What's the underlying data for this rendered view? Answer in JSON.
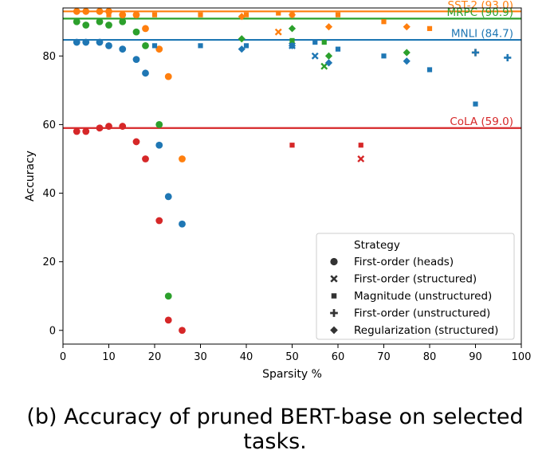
{
  "caption": "(b) Accuracy of pruned BERT-base on selected tasks.",
  "colors": {
    "SST-2": "#ff7f0e",
    "MRPC": "#2ca02c",
    "MNLI": "#1f77b4",
    "CoLA": "#d62728"
  },
  "chart_data": {
    "type": "scatter",
    "xlabel": "Sparsity %",
    "ylabel": "Accuracy",
    "xlim": [
      0,
      100
    ],
    "ylim": [
      -4,
      94
    ],
    "xticks": [
      0,
      10,
      20,
      30,
      40,
      50,
      60,
      70,
      80,
      90,
      100
    ],
    "yticks": [
      0,
      20,
      40,
      60,
      80
    ],
    "grid": false,
    "reference_lines": [
      {
        "task": "SST-2",
        "value": 93.0,
        "label": "SST-2 (93.0)"
      },
      {
        "task": "MRPC",
        "value": 90.9,
        "label": "MRPC (90.9)"
      },
      {
        "task": "MNLI",
        "value": 84.7,
        "label": "MNLI (84.7)"
      },
      {
        "task": "CoLA",
        "value": 59.0,
        "label": "CoLA (59.0)"
      }
    ],
    "legend": {
      "placement": "lower-right",
      "title": "Strategy",
      "entries": [
        {
          "marker": "circle",
          "label": "First-order (heads)"
        },
        {
          "marker": "x",
          "label": "First-order (structured)"
        },
        {
          "marker": "square",
          "label": "Magnitude (unstructured)"
        },
        {
          "marker": "plus",
          "label": "First-order (unstructured)"
        },
        {
          "marker": "diamond",
          "label": "Regularization (structured)"
        }
      ]
    },
    "series": [
      {
        "task": "SST-2",
        "strategy": "First-order (heads)",
        "marker": "circle",
        "x": [
          3,
          5,
          8,
          10,
          13,
          16,
          18,
          21,
          23,
          26
        ],
        "y": [
          93,
          93,
          93,
          93,
          92,
          92,
          88,
          82,
          74,
          50
        ]
      },
      {
        "task": "MRPC",
        "strategy": "First-order (heads)",
        "marker": "circle",
        "x": [
          3,
          5,
          8,
          10,
          13,
          16,
          18,
          21,
          23
        ],
        "y": [
          90,
          89,
          90,
          89,
          90,
          87,
          83,
          60,
          10
        ]
      },
      {
        "task": "MNLI",
        "strategy": "First-order (heads)",
        "marker": "circle",
        "x": [
          3,
          5,
          8,
          10,
          13,
          16,
          18,
          21,
          23,
          26
        ],
        "y": [
          84,
          84,
          84,
          83,
          82,
          79,
          75,
          54,
          39,
          31
        ]
      },
      {
        "task": "CoLA",
        "strategy": "First-order (heads)",
        "marker": "circle",
        "x": [
          3,
          5,
          8,
          10,
          13,
          16,
          18,
          21,
          23,
          26
        ],
        "y": [
          58,
          58,
          59,
          59.5,
          59.5,
          55,
          50,
          32,
          3,
          0
        ]
      },
      {
        "task": "SST-2",
        "strategy": "First-order (structured)",
        "marker": "x",
        "x": [
          47
        ],
        "y": [
          87
        ]
      },
      {
        "task": "MNLI",
        "strategy": "First-order (structured)",
        "marker": "x",
        "x": [
          50,
          55
        ],
        "y": [
          83,
          80
        ]
      },
      {
        "task": "MRPC",
        "strategy": "First-order (structured)",
        "marker": "x",
        "x": [
          57
        ],
        "y": [
          77
        ]
      },
      {
        "task": "CoLA",
        "strategy": "First-order (structured)",
        "marker": "x",
        "x": [
          65
        ],
        "y": [
          50
        ]
      },
      {
        "task": "SST-2",
        "strategy": "Magnitude (unstructured)",
        "marker": "square",
        "x": [
          10,
          20,
          30,
          40,
          47,
          50,
          60,
          70,
          80
        ],
        "y": [
          92,
          92,
          92,
          92,
          92.5,
          92,
          92,
          90,
          88
        ]
      },
      {
        "task": "MRPC",
        "strategy": "Magnitude (unstructured)",
        "marker": "square",
        "x": [
          50,
          57
        ],
        "y": [
          84.5,
          84
        ]
      },
      {
        "task": "MNLI",
        "strategy": "Magnitude (unstructured)",
        "marker": "square",
        "x": [
          10,
          20,
          30,
          40,
          50,
          55,
          60,
          70,
          80,
          90
        ],
        "y": [
          83,
          83,
          83,
          83,
          83,
          84,
          82,
          80,
          76,
          66
        ]
      },
      {
        "task": "CoLA",
        "strategy": "Magnitude (unstructured)",
        "marker": "square",
        "x": [
          50,
          65
        ],
        "y": [
          54,
          54
        ]
      },
      {
        "task": "SST-2",
        "strategy": "First-order (unstructured)",
        "marker": "plus",
        "x": [
          90
        ],
        "y": [
          81
        ]
      },
      {
        "task": "MNLI",
        "strategy": "First-order (unstructured)",
        "marker": "plus",
        "x": [
          90,
          97
        ],
        "y": [
          81,
          79.5
        ]
      },
      {
        "task": "SST-2",
        "strategy": "Regularization (structured)",
        "marker": "diamond",
        "x": [
          39,
          50,
          58,
          75
        ],
        "y": [
          91.5,
          92,
          88.5,
          88.5
        ]
      },
      {
        "task": "MRPC",
        "strategy": "Regularization (structured)",
        "marker": "diamond",
        "x": [
          39,
          50,
          58,
          75
        ],
        "y": [
          85,
          88,
          80,
          81
        ]
      },
      {
        "task": "MNLI",
        "strategy": "Regularization (structured)",
        "marker": "diamond",
        "x": [
          39,
          50,
          58,
          75
        ],
        "y": [
          82,
          83,
          78,
          78.5
        ]
      }
    ]
  }
}
